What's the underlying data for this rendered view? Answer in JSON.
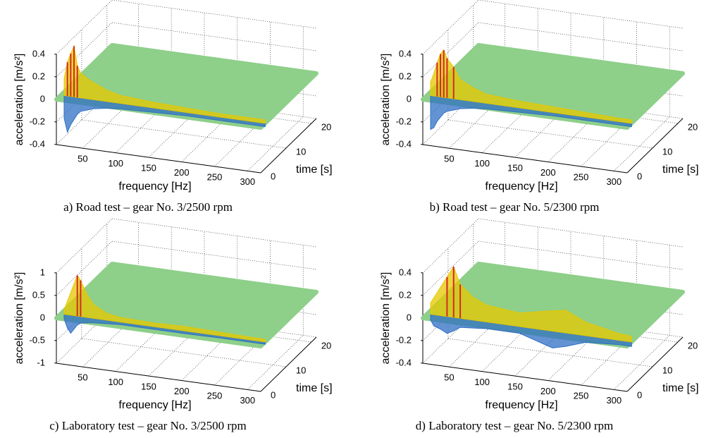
{
  "chart_data": [
    {
      "type": "surface",
      "caption": "a) Road test – gear No. 3/2500 rpm",
      "xlabel": "frequency [Hz]",
      "ylabel": "time [s]",
      "zlabel": "acceleration [m/s²]",
      "xlim": [
        10,
        320
      ],
      "xticks": [
        50,
        100,
        150,
        200,
        250,
        300
      ],
      "ylim": [
        0,
        22
      ],
      "yticks": [
        0,
        10,
        20
      ],
      "zlim": [
        -0.4,
        0.4
      ],
      "zticks": [
        -0.4,
        -0.2,
        0,
        0.2,
        0.4
      ],
      "x": [
        15,
        20,
        25,
        30,
        35,
        40,
        50,
        60,
        80,
        100,
        150,
        200,
        250,
        300,
        320
      ],
      "upper": [
        0.15,
        0.3,
        0.38,
        0.45,
        0.28,
        0.22,
        0.18,
        0.15,
        0.1,
        0.07,
        0.05,
        0.04,
        0.03,
        0.03,
        0.03
      ],
      "lower": [
        -0.2,
        -0.32,
        -0.25,
        -0.2,
        -0.15,
        -0.12,
        -0.1,
        -0.08,
        -0.06,
        -0.05,
        -0.04,
        -0.03,
        -0.03,
        -0.03,
        -0.03
      ],
      "colors": {
        "surface": "#8ecf8a",
        "upper": "#e6c800",
        "peak": "#d62a1e",
        "lower": "#2f6fc4"
      }
    },
    {
      "type": "surface",
      "caption": "b) Road test – gear No. 5/2300 rpm",
      "xlabel": "frequency [Hz]",
      "ylabel": "time [s]",
      "zlabel": "acceleration [m/s²]",
      "xlim": [
        10,
        320
      ],
      "xticks": [
        50,
        100,
        150,
        200,
        250,
        300
      ],
      "ylim": [
        0,
        22
      ],
      "yticks": [
        0,
        10,
        20
      ],
      "zlim": [
        -0.4,
        0.4
      ],
      "zticks": [
        -0.4,
        -0.2,
        0,
        0.2,
        0.4
      ],
      "x": [
        15,
        20,
        25,
        30,
        35,
        40,
        50,
        60,
        80,
        100,
        150,
        200,
        250,
        300,
        320
      ],
      "upper": [
        0.12,
        0.2,
        0.3,
        0.38,
        0.42,
        0.35,
        0.28,
        0.18,
        0.12,
        0.08,
        0.06,
        0.05,
        0.04,
        0.03,
        0.03
      ],
      "lower": [
        -0.3,
        -0.28,
        -0.22,
        -0.18,
        -0.14,
        -0.12,
        -0.1,
        -0.08,
        -0.06,
        -0.05,
        -0.04,
        -0.03,
        -0.03,
        -0.03,
        -0.03
      ],
      "colors": {
        "surface": "#8ecf8a",
        "upper": "#e6c800",
        "peak": "#d62a1e",
        "lower": "#2f6fc4"
      }
    },
    {
      "type": "surface",
      "caption": "c) Laboratory test – gear No. 3/2500 rpm",
      "xlabel": "frequency [Hz]",
      "ylabel": "time [s]",
      "zlabel": "acceleration [m/s²]",
      "xlim": [
        10,
        320
      ],
      "xticks": [
        50,
        100,
        150,
        200,
        250,
        300
      ],
      "ylim": [
        0,
        22
      ],
      "yticks": [
        0,
        10,
        20
      ],
      "zlim": [
        -1,
        1
      ],
      "zticks": [
        -1,
        -0.5,
        0,
        0.5,
        1
      ],
      "x": [
        15,
        20,
        25,
        30,
        35,
        40,
        50,
        60,
        80,
        100,
        150,
        200,
        250,
        300,
        320
      ],
      "upper": [
        0.1,
        0.3,
        0.5,
        0.7,
        0.9,
        0.8,
        0.5,
        0.3,
        0.15,
        0.1,
        0.08,
        0.1,
        0.08,
        0.06,
        0.06
      ],
      "lower": [
        -0.1,
        -0.3,
        -0.4,
        -0.3,
        -0.2,
        -0.15,
        -0.12,
        -0.1,
        -0.08,
        -0.06,
        -0.06,
        -0.06,
        -0.05,
        -0.05,
        -0.05
      ],
      "colors": {
        "surface": "#8ecf8a",
        "upper": "#e6c800",
        "peak": "#d62a1e",
        "lower": "#2f6fc4"
      }
    },
    {
      "type": "surface",
      "caption": "d) Laboratory test – gear No. 5/2300 rpm",
      "xlabel": "frequency [Hz]",
      "ylabel": "time [s]",
      "zlabel": "acceleration [m/s²]",
      "xlim": [
        10,
        320
      ],
      "xticks": [
        50,
        100,
        150,
        200,
        250,
        300
      ],
      "ylim": [
        0,
        22
      ],
      "yticks": [
        0,
        10,
        20
      ],
      "zlim": [
        -0.4,
        0.4
      ],
      "zticks": [
        -0.4,
        -0.2,
        0,
        0.2,
        0.4
      ],
      "x": [
        15,
        20,
        30,
        40,
        50,
        60,
        80,
        100,
        150,
        200,
        220,
        250,
        300,
        320
      ],
      "upper": [
        0.1,
        0.15,
        0.25,
        0.35,
        0.45,
        0.3,
        0.2,
        0.15,
        0.12,
        0.18,
        0.2,
        0.12,
        0.06,
        0.05
      ],
      "lower": [
        -0.05,
        -0.1,
        -0.12,
        -0.15,
        -0.12,
        -0.08,
        -0.07,
        -0.06,
        -0.06,
        -0.15,
        -0.12,
        -0.06,
        -0.04,
        -0.04
      ],
      "colors": {
        "surface": "#8ecf8a",
        "upper": "#e6c800",
        "peak": "#d62a1e",
        "lower": "#2f6fc4"
      }
    }
  ]
}
